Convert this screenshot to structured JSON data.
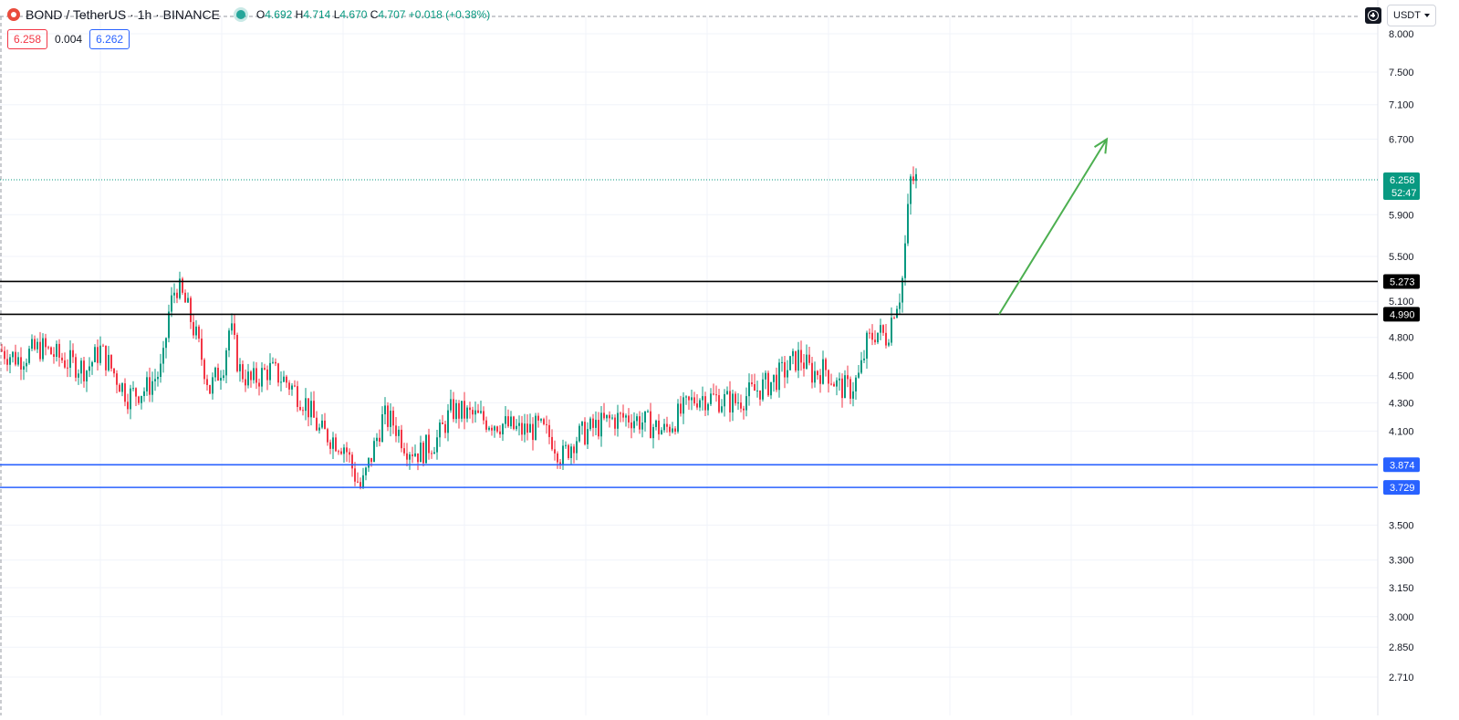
{
  "header": {
    "symbol": "BOND / TetherUS · 1h · BINANCE",
    "o_label": "O",
    "o_value": "4.692",
    "h_label": "H",
    "h_value": "4.714",
    "l_label": "L",
    "l_value": "4.670",
    "c_label": "C",
    "c_value": "4.707",
    "change": "+0.018 (+0.38%)",
    "sell_price": "6.258",
    "spread": "0.004",
    "buy_price": "6.262",
    "currency": "USDT"
  },
  "colors": {
    "up": "#089981",
    "down": "#f23645",
    "resistance_line": "#000000",
    "support_line": "#2962ff",
    "arrow": "#4caf50",
    "current_price": "#089981"
  },
  "chart_data": {
    "type": "candlestick",
    "scale": "log",
    "grid": true,
    "x_range": [
      0,
      1510
    ],
    "price_axis_labels": [
      "8.000",
      "7.500",
      "7.100",
      "6.700",
      "5.900",
      "5.500",
      "5.100",
      "4.800",
      "4.500",
      "4.300",
      "4.100",
      "3.500",
      "3.300",
      "3.150",
      "3.000",
      "2.850",
      "2.710"
    ],
    "current_price": {
      "value": "6.258",
      "countdown": "52:47"
    },
    "horizontal_lines": [
      {
        "value": "5.273",
        "role": "resistance"
      },
      {
        "value": "4.990",
        "role": "resistance"
      },
      {
        "value": "3.874",
        "role": "support"
      },
      {
        "value": "3.729",
        "role": "support"
      }
    ],
    "projection_arrow": {
      "from": [
        1095,
        4.99
      ],
      "to": [
        1213,
        6.7
      ]
    },
    "price_path": [
      [
        0,
        4.7
      ],
      [
        20,
        4.63
      ],
      [
        45,
        4.72
      ],
      [
        70,
        4.62
      ],
      [
        95,
        4.55
      ],
      [
        110,
        4.7
      ],
      [
        125,
        4.52
      ],
      [
        140,
        4.35
      ],
      [
        160,
        4.4
      ],
      [
        178,
        4.55
      ],
      [
        185,
        5.0
      ],
      [
        193,
        5.25
      ],
      [
        205,
        5.05
      ],
      [
        215,
        4.8
      ],
      [
        230,
        4.4
      ],
      [
        245,
        4.6
      ],
      [
        252,
        4.9
      ],
      [
        262,
        4.55
      ],
      [
        275,
        4.45
      ],
      [
        295,
        4.55
      ],
      [
        315,
        4.45
      ],
      [
        335,
        4.3
      ],
      [
        350,
        4.1
      ],
      [
        365,
        4.05
      ],
      [
        378,
        4.0
      ],
      [
        388,
        3.82
      ],
      [
        396,
        3.72
      ],
      [
        408,
        3.95
      ],
      [
        420,
        4.2
      ],
      [
        432,
        4.15
      ],
      [
        445,
        4.0
      ],
      [
        460,
        3.95
      ],
      [
        480,
        4.05
      ],
      [
        495,
        4.25
      ],
      [
        510,
        4.22
      ],
      [
        530,
        4.18
      ],
      [
        550,
        4.15
      ],
      [
        570,
        4.1
      ],
      [
        590,
        4.12
      ],
      [
        605,
        4.05
      ],
      [
        616,
        3.92
      ],
      [
        630,
        4.05
      ],
      [
        650,
        4.12
      ],
      [
        670,
        4.18
      ],
      [
        690,
        4.2
      ],
      [
        710,
        4.15
      ],
      [
        728,
        4.1
      ],
      [
        745,
        4.22
      ],
      [
        765,
        4.35
      ],
      [
        785,
        4.33
      ],
      [
        805,
        4.3
      ],
      [
        825,
        4.38
      ],
      [
        845,
        4.45
      ],
      [
        862,
        4.55
      ],
      [
        876,
        4.65
      ],
      [
        890,
        4.52
      ],
      [
        905,
        4.55
      ],
      [
        918,
        4.42
      ],
      [
        932,
        4.4
      ],
      [
        942,
        4.5
      ],
      [
        950,
        4.75
      ],
      [
        960,
        4.85
      ],
      [
        972,
        4.8
      ],
      [
        980,
        5.05
      ],
      [
        988,
        5.2
      ],
      [
        993,
        5.7
      ],
      [
        998,
        6.25
      ],
      [
        1004,
        6.26
      ]
    ]
  }
}
